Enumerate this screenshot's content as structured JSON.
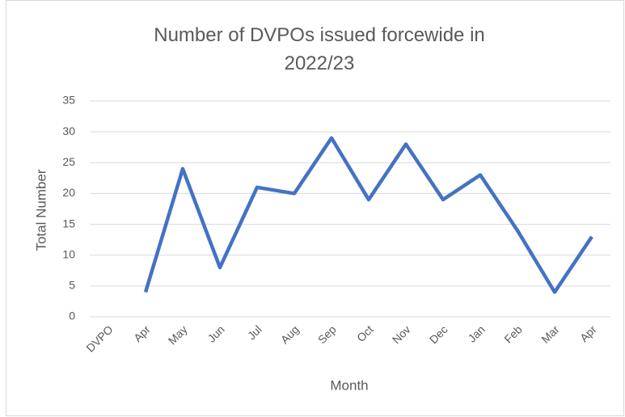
{
  "chart_data": {
    "type": "line",
    "title": "Number of DVPOs issued forcewide in 2022/23",
    "x_label": "Month",
    "y_label": "Total Number",
    "categories": [
      "DVPO",
      "Apr",
      "May",
      "Jun",
      "Jul",
      "Aug",
      "Sep",
      "Oct",
      "Nov",
      "Dec",
      "Jan",
      "Feb",
      "Mar",
      "Apr"
    ],
    "series": [
      {
        "name": "Total Number",
        "color": "#4472c4",
        "values": [
          null,
          4,
          24,
          8,
          21,
          20,
          29,
          19,
          28,
          19,
          23,
          14,
          4,
          13
        ]
      }
    ],
    "ylim": [
      0,
      35
    ],
    "yticks": [
      0,
      5,
      10,
      15,
      20,
      25,
      30,
      35
    ],
    "grid": true
  }
}
